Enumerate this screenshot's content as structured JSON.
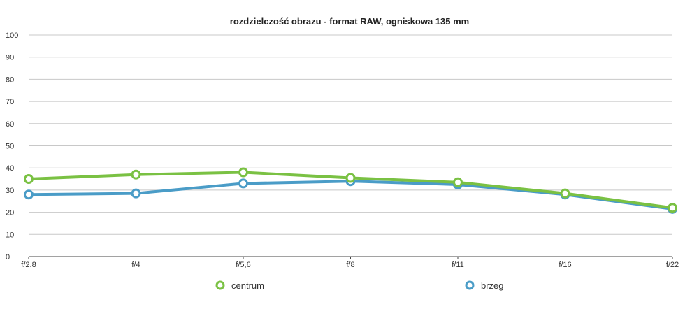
{
  "chart_data": {
    "type": "line",
    "title": "rozdzielczość obrazu - format RAW, ogniskowa 135 mm",
    "xlabel": "",
    "ylabel": "",
    "categories": [
      "f/2.8",
      "f/4",
      "f/5,6",
      "f/8",
      "f/11",
      "f/16",
      "f/22"
    ],
    "ylim": [
      0,
      100
    ],
    "yticks": [
      "0",
      "10",
      "20",
      "30",
      "40",
      "50",
      "60",
      "70",
      "80",
      "90",
      "100"
    ],
    "grid": true,
    "legend_position": "bottom",
    "series": [
      {
        "name": "centrum",
        "color": "#7ac143",
        "values": [
          35,
          37,
          38,
          35.5,
          33.5,
          28.5,
          22
        ]
      },
      {
        "name": "brzeg",
        "color": "#4a9cc7",
        "values": [
          28,
          28.5,
          33,
          34,
          32.5,
          28,
          21.5
        ]
      }
    ]
  }
}
